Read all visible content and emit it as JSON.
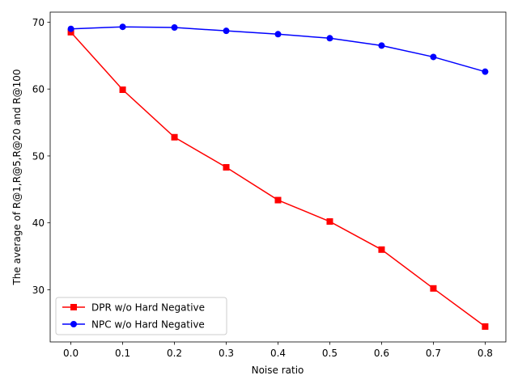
{
  "chart_data": {
    "type": "line",
    "title": "",
    "xlabel": "Noise ratio",
    "ylabel": "The average of R@1,R@5,R@20 and R@100",
    "x": [
      0.0,
      0.1,
      0.2,
      0.3,
      0.4,
      0.5,
      0.6,
      0.7,
      0.8
    ],
    "xlim": [
      -0.04,
      0.84
    ],
    "ylim": [
      22.2,
      71.5
    ],
    "xticks": [
      "0.0",
      "0.1",
      "0.2",
      "0.3",
      "0.4",
      "0.5",
      "0.6",
      "0.7",
      "0.8"
    ],
    "yticks": [
      "30",
      "40",
      "50",
      "60",
      "70"
    ],
    "grid": false,
    "legend_position": "bottom-left",
    "series": [
      {
        "name": "DPR w/o Hard Negative",
        "color": "#ff0000",
        "marker": "square",
        "values": [
          68.5,
          59.9,
          52.8,
          48.3,
          43.4,
          40.2,
          36.0,
          30.2,
          24.5
        ]
      },
      {
        "name": "NPC w/o Hard Negative",
        "color": "#0000ff",
        "marker": "circle",
        "values": [
          69.0,
          69.3,
          69.2,
          68.7,
          68.2,
          67.6,
          66.5,
          64.8,
          62.6
        ]
      }
    ]
  }
}
